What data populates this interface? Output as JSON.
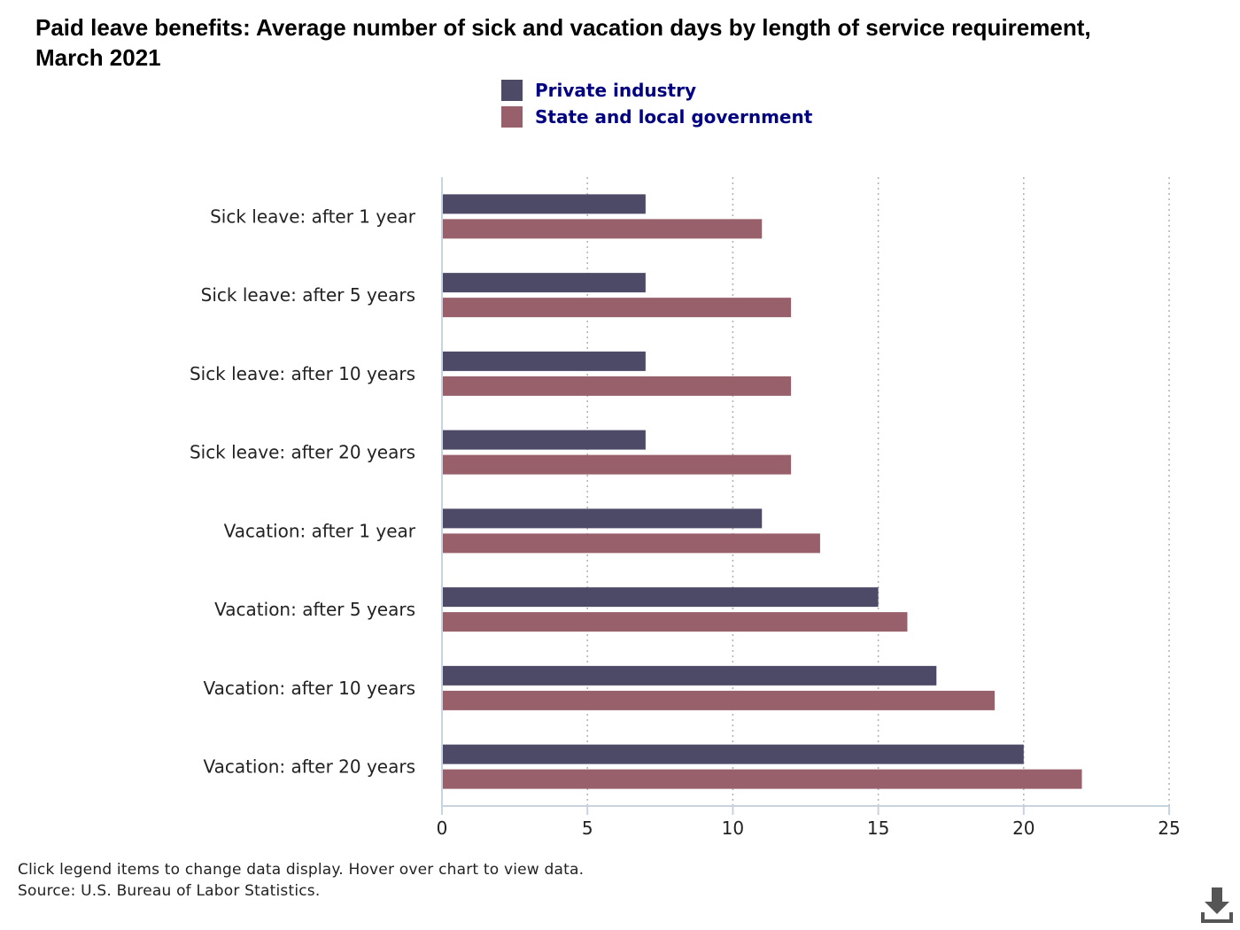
{
  "chart_data": {
    "type": "bar",
    "orientation": "horizontal",
    "title": "Paid leave benefits: Average number of sick and vacation days by length of service requirement, March 2021",
    "categories": [
      "Sick leave: after 1 year",
      "Sick leave: after 5 years",
      "Sick leave: after 10 years",
      "Sick leave: after 20 years",
      "Vacation: after 1 year",
      "Vacation: after 5 years",
      "Vacation: after 10 years",
      "Vacation: after 20 years"
    ],
    "series": [
      {
        "name": "Private industry",
        "color": "#4d4a68",
        "values": [
          7,
          7,
          7,
          7,
          11,
          15,
          17,
          20
        ]
      },
      {
        "name": "State and local government",
        "color": "#98606b",
        "values": [
          11,
          12,
          12,
          12,
          13,
          16,
          19,
          22
        ]
      }
    ],
    "xlim": [
      0,
      25
    ],
    "xticks": [
      "0",
      "5",
      "10",
      "15",
      "20",
      "25"
    ],
    "xlabel": "",
    "ylabel": "",
    "grid": "vertical dotted",
    "legend_position": "top-center"
  },
  "notes": {
    "instructions": "Click legend items to change data display. Hover over chart to view data.",
    "source": "Source: U.S. Bureau of Labor Statistics."
  },
  "icons": {
    "download": "download-icon"
  }
}
